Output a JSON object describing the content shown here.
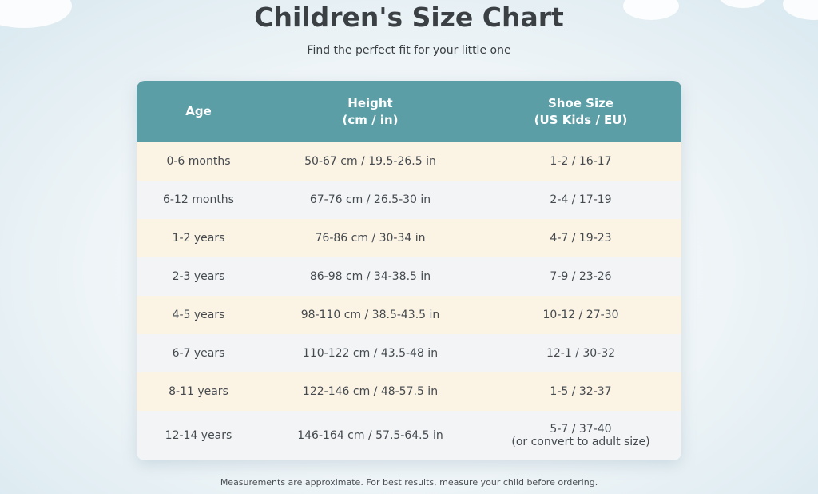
{
  "header": {
    "title": "Children's Size Chart",
    "subtitle": "Find the perfect fit for your little one"
  },
  "table": {
    "columns": [
      {
        "label": "Age"
      },
      {
        "label": "Height",
        "unit": "(cm / in)"
      },
      {
        "label": "Shoe Size",
        "unit": "(US Kids / EU)"
      }
    ],
    "rows": [
      [
        "0-6 months",
        "50-67 cm / 19.5-26.5 in",
        "1-2 / 16-17"
      ],
      [
        "6-12 months",
        "67-76 cm / 26.5-30 in",
        "2-4 / 17-19"
      ],
      [
        "1-2 years",
        "76-86 cm / 30-34 in",
        "4-7 / 19-23"
      ],
      [
        "2-3 years",
        "86-98 cm / 34-38.5 in",
        "7-9 / 23-26"
      ],
      [
        "4-5 years",
        "98-110 cm / 38.5-43.5 in",
        "10-12 / 27-30"
      ],
      [
        "6-7 years",
        "110-122 cm / 43.5-48 in",
        "12-1 / 30-32"
      ],
      [
        "8-11 years",
        "122-146 cm / 48-57.5 in",
        "1-5 / 32-37"
      ],
      [
        "12-14 years",
        "146-164 cm / 57.5-64.5 in",
        "5-7 / 37-40"
      ]
    ],
    "row_note": {
      "row": 7,
      "text": "(or convert to adult size)"
    }
  },
  "footer": {
    "note": "Measurements are approximate. For best results, measure your child before ordering."
  }
}
